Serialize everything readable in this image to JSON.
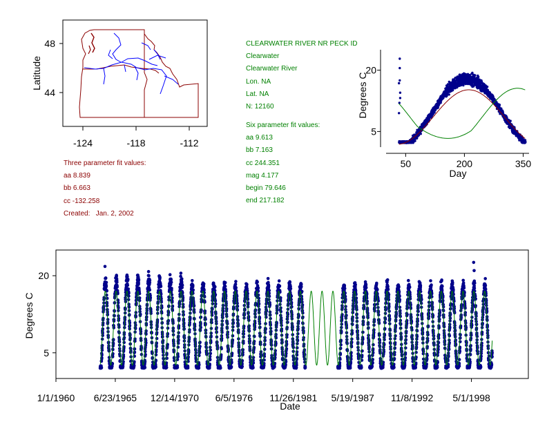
{
  "map": {
    "ylabel": "Latitude",
    "yticks": [
      "48",
      "44"
    ],
    "xticks": [
      "-124",
      "-118",
      "-112"
    ]
  },
  "station": {
    "title": "CLEARWATER RIVER NR PECK ID",
    "lines": [
      "Clearwater",
      "Clearwater River",
      "Lon. NA",
      "Lat. NA",
      "N: 12160"
    ]
  },
  "six_param": {
    "heading": "Six parameter fit values:",
    "lines": [
      "aa 9.613",
      "bb 7.163",
      "cc 244.351",
      "mag 4.177",
      "begin 79.646",
      "end 217.182"
    ]
  },
  "three_param": {
    "heading": "Three parameter fit values:",
    "lines": [
      "aa 8.839",
      "bb 6.663",
      "cc -132.258",
      "Created:   Jan. 2, 2002"
    ]
  },
  "colors": {
    "data": "#00008b",
    "three_fit": "#8b0000",
    "six_fit": "#008000",
    "map_border": "#8b0000",
    "rivers": "#0000ff",
    "three_text": "#8b0000",
    "six_text": "#008000"
  },
  "chart_data": [
    {
      "type": "scatter",
      "title": "",
      "xlabel": "Day",
      "ylabel": "Degrees C",
      "xlim": [
        0,
        365
      ],
      "ylim": [
        0,
        25
      ],
      "xticks": [
        50,
        200,
        350
      ],
      "yticks": [
        5,
        20
      ],
      "data_day_range": [
        33,
        355
      ],
      "fits": [
        {
          "name": "Three parameter fit",
          "aa": 8.839,
          "bb": 6.663,
          "cc": -132.258
        },
        {
          "name": "Six parameter fit",
          "aa": 9.613,
          "bb": 7.163,
          "cc": 244.351,
          "mag": 4.177,
          "begin": 79.646,
          "end": 217.182
        }
      ]
    },
    {
      "type": "scatter",
      "title": "",
      "xlabel": "Date",
      "ylabel": "Degrees C",
      "xlim": [
        "1/1/1960",
        "8/1/2003"
      ],
      "ylim": [
        0,
        25
      ],
      "yticks": [
        5,
        20
      ],
      "xtick_labels": [
        "1/1/1960",
        "6/23/1965",
        "12/14/1970",
        "6/5/1976",
        "11/26/1981",
        "5/19/1987",
        "11/8/1992",
        "5/1/1998"
      ],
      "data_range": [
        "2/1/1964",
        "4/1/2000"
      ],
      "gap_no_data": [
        "1/1/1983",
        "1/1/1986"
      ],
      "outliers": [
        {
          "x": "7/10/1964",
          "y": 21.8
        },
        {
          "x": "7/15/1998",
          "y": 22.6
        },
        {
          "x": "8/1/1998",
          "y": 21.0
        }
      ]
    }
  ]
}
